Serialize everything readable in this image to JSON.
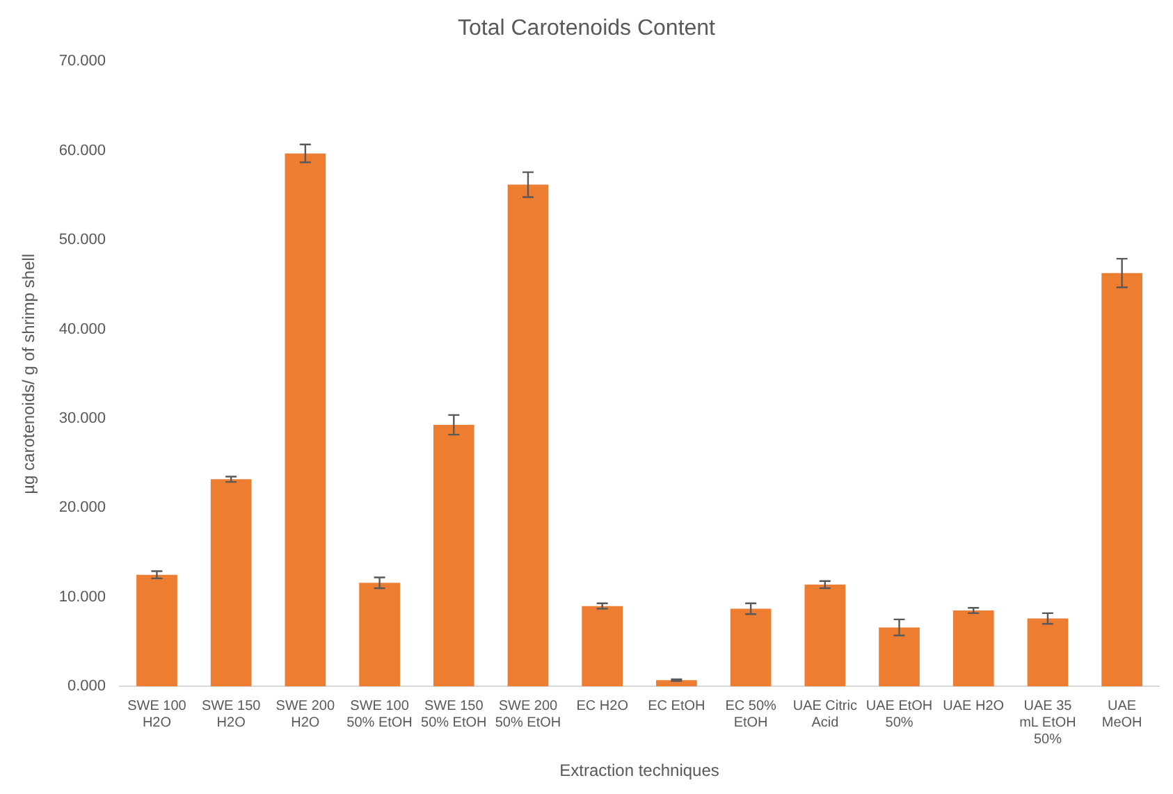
{
  "chart_data": {
    "type": "bar",
    "title": "Total Carotenoids Content",
    "xlabel": "Extraction techniques",
    "ylabel": "µg carotenoids/ g of shrimp shell",
    "categories": [
      "SWE 100 H2O",
      "SWE 150 H2O",
      "SWE 200 H2O",
      "SWE 100 50% EtOH",
      "SWE 150 50% EtOH",
      "SWE 200 50% EtOH",
      "EC H2O",
      "EC EtOH",
      "EC 50% EtOH",
      "UAE Citric Acid",
      "UAE EtOH 50%",
      "UAE H2O",
      "UAE 35 mL EtOH 50%",
      "UAE MeOH"
    ],
    "values": [
      12.5,
      23.2,
      59.7,
      11.6,
      29.3,
      56.2,
      9.0,
      0.7,
      8.7,
      11.4,
      6.6,
      8.5,
      7.6,
      46.3
    ],
    "errors": [
      0.4,
      0.3,
      1.0,
      0.6,
      1.1,
      1.4,
      0.3,
      0.1,
      0.6,
      0.4,
      0.9,
      0.3,
      0.6,
      1.6
    ],
    "color": "#ed7d31",
    "ylim": [
      0,
      70
    ],
    "yticks": [
      {
        "value": 0,
        "label": "0.000"
      },
      {
        "value": 10,
        "label": "10.000"
      },
      {
        "value": 20,
        "label": "20.000"
      },
      {
        "value": 30,
        "label": "30.000"
      },
      {
        "value": 40,
        "label": "40.000"
      },
      {
        "value": 50,
        "label": "50.000"
      },
      {
        "value": 60,
        "label": "60.000"
      },
      {
        "value": 70,
        "label": "70.000"
      }
    ],
    "grid": false,
    "legend": false
  }
}
